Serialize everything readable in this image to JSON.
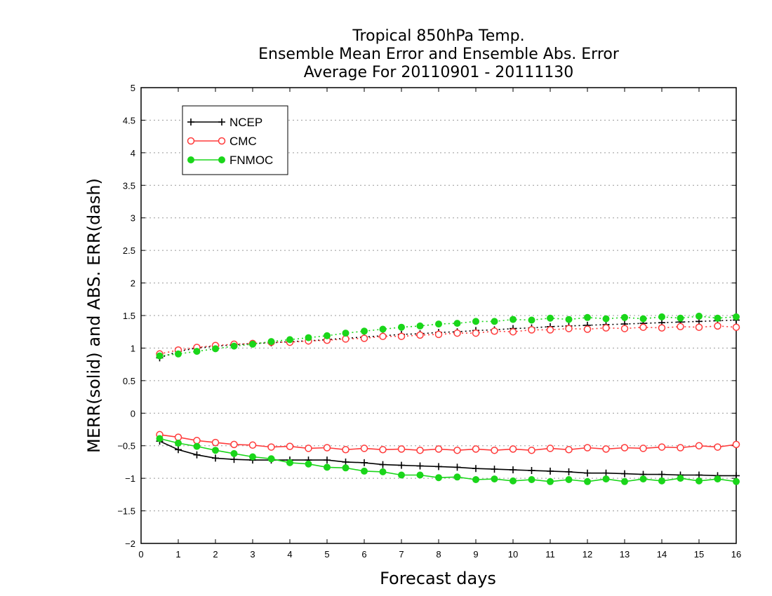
{
  "chart_data": {
    "type": "line",
    "title_lines": [
      "Tropical 850hPa Temp.",
      "Ensemble Mean Error and Ensemble Abs. Error",
      "Average For 20110901 - 20111130"
    ],
    "xlabel": "Forecast days",
    "ylabel": "MERR(solid) and ABS. ERR(dash)",
    "xlim": [
      0,
      16
    ],
    "ylim": [
      -2,
      5
    ],
    "x_ticks": [
      0,
      1,
      2,
      3,
      4,
      5,
      6,
      7,
      8,
      9,
      10,
      11,
      12,
      13,
      14,
      15,
      16
    ],
    "y_ticks": [
      -2,
      -1.5,
      -1,
      -0.5,
      0,
      0.5,
      1,
      1.5,
      2,
      2.5,
      3,
      3.5,
      4,
      4.5,
      5
    ],
    "grid": "horizontal dotted",
    "legend_placement": "top-left",
    "x": [
      0.5,
      1,
      1.5,
      2,
      2.5,
      3,
      3.5,
      4,
      4.5,
      5,
      5.5,
      6,
      6.5,
      7,
      7.5,
      8,
      8.5,
      9,
      9.5,
      10,
      10.5,
      11,
      11.5,
      12,
      12.5,
      13,
      13.5,
      14,
      14.5,
      15,
      15.5,
      16
    ],
    "series": [
      {
        "name": "NCEP",
        "color": "#000000",
        "marker": "plus",
        "merr": [
          -0.43,
          -0.56,
          -0.64,
          -0.69,
          -0.71,
          -0.72,
          -0.72,
          -0.72,
          -0.72,
          -0.72,
          -0.75,
          -0.76,
          -0.79,
          -0.8,
          -0.81,
          -0.82,
          -0.83,
          -0.85,
          -0.86,
          -0.87,
          -0.88,
          -0.89,
          -0.9,
          -0.92,
          -0.92,
          -0.93,
          -0.94,
          -0.94,
          -0.95,
          -0.95,
          -0.96,
          -0.96
        ],
        "abs_err": [
          0.85,
          0.95,
          1.0,
          1.03,
          1.05,
          1.07,
          1.08,
          1.1,
          1.11,
          1.13,
          1.15,
          1.17,
          1.19,
          1.21,
          1.22,
          1.24,
          1.25,
          1.27,
          1.28,
          1.3,
          1.31,
          1.33,
          1.34,
          1.35,
          1.36,
          1.37,
          1.38,
          1.39,
          1.4,
          1.41,
          1.42,
          1.43
        ]
      },
      {
        "name": "CMC",
        "color": "#ff3b3b",
        "marker": "circle-open",
        "merr": [
          -0.33,
          -0.37,
          -0.42,
          -0.45,
          -0.48,
          -0.49,
          -0.52,
          -0.51,
          -0.54,
          -0.53,
          -0.56,
          -0.54,
          -0.56,
          -0.55,
          -0.57,
          -0.55,
          -0.57,
          -0.55,
          -0.57,
          -0.55,
          -0.57,
          -0.54,
          -0.56,
          -0.53,
          -0.55,
          -0.53,
          -0.54,
          -0.52,
          -0.53,
          -0.5,
          -0.52,
          -0.48
        ],
        "abs_err": [
          0.91,
          0.97,
          1.01,
          1.04,
          1.06,
          1.07,
          1.09,
          1.09,
          1.11,
          1.12,
          1.14,
          1.15,
          1.18,
          1.18,
          1.2,
          1.21,
          1.23,
          1.23,
          1.26,
          1.25,
          1.28,
          1.28,
          1.3,
          1.29,
          1.31,
          1.3,
          1.32,
          1.31,
          1.33,
          1.32,
          1.34,
          1.32
        ]
      },
      {
        "name": "FNMOC",
        "color": "#1ad61a",
        "marker": "circle-filled",
        "merr": [
          -0.39,
          -0.46,
          -0.51,
          -0.57,
          -0.62,
          -0.67,
          -0.7,
          -0.76,
          -0.78,
          -0.83,
          -0.84,
          -0.89,
          -0.9,
          -0.95,
          -0.95,
          -0.99,
          -0.98,
          -1.02,
          -1.01,
          -1.04,
          -1.02,
          -1.05,
          -1.02,
          -1.05,
          -1.01,
          -1.05,
          -1.01,
          -1.04,
          -1.0,
          -1.04,
          -1.01,
          -1.05
        ],
        "abs_err": [
          0.88,
          0.91,
          0.95,
          0.99,
          1.03,
          1.06,
          1.1,
          1.13,
          1.16,
          1.19,
          1.23,
          1.26,
          1.29,
          1.32,
          1.34,
          1.37,
          1.38,
          1.41,
          1.41,
          1.44,
          1.43,
          1.46,
          1.44,
          1.47,
          1.45,
          1.47,
          1.45,
          1.48,
          1.46,
          1.49,
          1.46,
          1.48
        ]
      }
    ]
  }
}
